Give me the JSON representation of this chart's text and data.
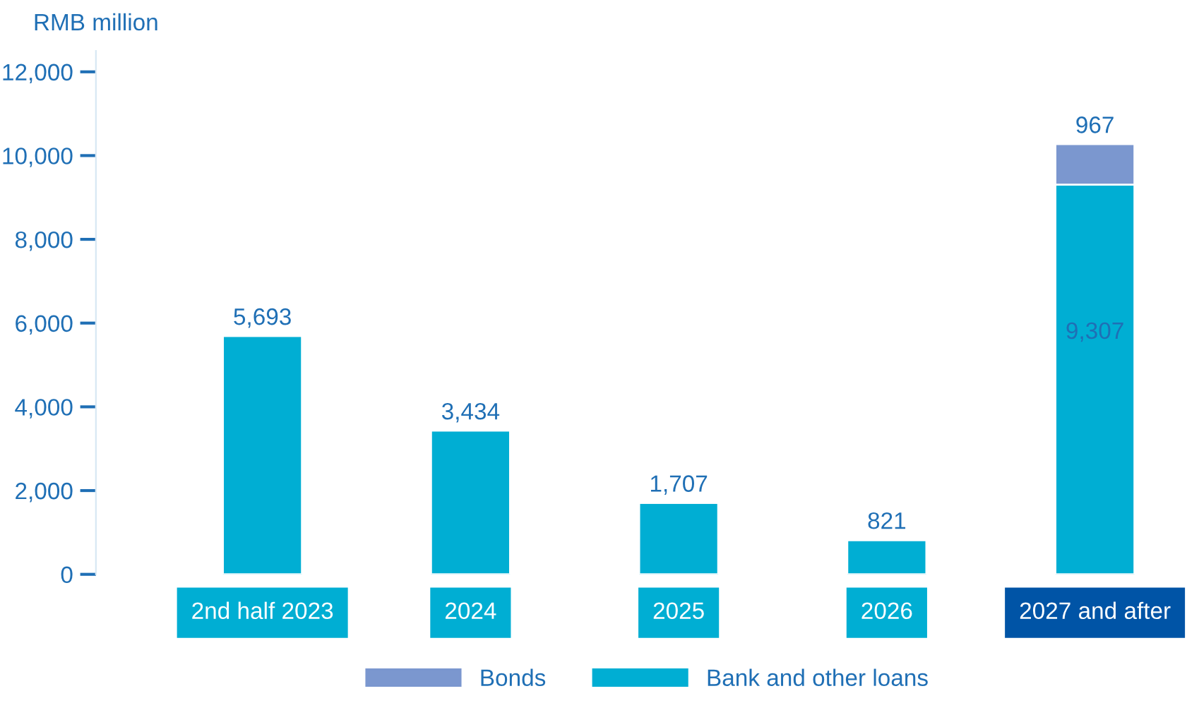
{
  "chart_data": {
    "type": "bar",
    "stacked": true,
    "ylabel": "RMB million",
    "categories": [
      "2nd half 2023",
      "2024",
      "2025",
      "2026",
      "2027 and after"
    ],
    "series": [
      {
        "name": "Bank and other loans",
        "color": "#00aed3",
        "values": [
          5693,
          3434,
          1707,
          821,
          9307
        ],
        "value_labels": [
          "5,693",
          "3,434",
          "1,707",
          "821",
          "9,307"
        ]
      },
      {
        "name": "Bonds",
        "color": "#7b97cf",
        "values": [
          null,
          null,
          null,
          null,
          967
        ],
        "value_labels": [
          null,
          null,
          null,
          null,
          "967"
        ]
      }
    ],
    "ylim": [
      0,
      12500
    ],
    "yticks": [
      {
        "value": 0,
        "label": "0"
      },
      {
        "value": 2000,
        "label": "2,000"
      },
      {
        "value": 4000,
        "label": "4,000"
      },
      {
        "value": 6000,
        "label": "6,000"
      },
      {
        "value": 8000,
        "label": "8,000"
      },
      {
        "value": 10000,
        "label": "10,000"
      },
      {
        "value": 12000,
        "label": "12,000"
      }
    ],
    "grid": false,
    "legend": "bottom"
  }
}
